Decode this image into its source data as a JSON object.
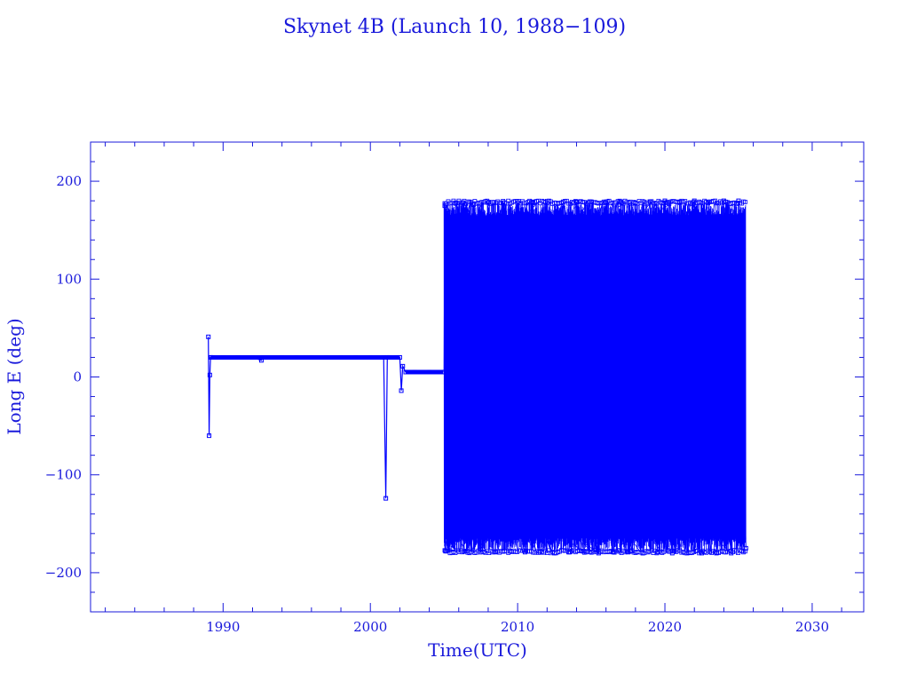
{
  "chart_data": {
    "type": "line",
    "title": "Skynet 4B (Launch 10, 1988−109)",
    "xlabel": "Time(UTC)",
    "ylabel": "Long E (deg)",
    "xlim": [
      1981,
      2033.5
    ],
    "ylim": [
      -240,
      240
    ],
    "x_ticks": [
      1990,
      2000,
      2010,
      2020,
      2030
    ],
    "x_tick_labels": [
      "1990",
      "2000",
      "2010",
      "2020",
      "2030"
    ],
    "y_ticks": [
      -200,
      -100,
      0,
      100,
      200
    ],
    "y_tick_labels": [
      "−200",
      "−100",
      "0",
      "100",
      "200"
    ],
    "grid": false,
    "color": "#0000ff",
    "series": [
      {
        "x": [
          1989.0,
          1989.05,
          1989.1,
          1989.15,
          1989.2,
          1989.3,
          1990.0,
          1991.0,
          1992.0,
          1992.6,
          1992.7,
          1993.0,
          1994.0,
          1995.0,
          1996.0,
          1997.0,
          1998.0,
          1999.0,
          2000.0,
          2000.9,
          2001.05,
          2001.15,
          2001.3,
          2001.8,
          2002.0,
          2002.1,
          2002.2,
          2002.4,
          2003.0,
          2004.0,
          2004.95
        ],
        "y": [
          41,
          -60,
          2,
          20,
          20,
          20,
          20,
          20,
          20,
          17,
          20,
          20,
          20,
          20,
          20,
          20,
          20,
          20,
          20,
          20,
          -124,
          20,
          20,
          20,
          20,
          -14,
          11,
          5,
          5,
          5,
          5
        ]
      },
      {
        "x": [
          2005.0,
          2005.05,
          2005.1,
          2005.2,
          2005.3,
          2005.4,
          2005.6,
          2005.8,
          2006.0,
          2006.3,
          2006.6,
          2007.0,
          2007.5,
          2008.0,
          2008.5,
          2009.0,
          2009.5,
          2010.0,
          2010.5,
          2011.0,
          2011.5,
          2012.0,
          2012.5,
          2013.0,
          2013.5,
          2014.0,
          2014.5,
          2015.0,
          2015.5,
          2016.0,
          2016.5,
          2017.0,
          2017.5,
          2018.0,
          2018.5,
          2019.0,
          2019.5,
          2020.0,
          2020.5,
          2021.0,
          2021.5,
          2022.0,
          2022.5,
          2023.0,
          2023.5,
          2024.0,
          2024.5,
          2025.0,
          2025.5
        ],
        "y": [
          5,
          175,
          -178,
          170,
          -170,
          150,
          -175,
          178,
          -160,
          178,
          -178,
          176,
          -176,
          178,
          -179,
          178,
          -178,
          178,
          -179,
          179,
          -178,
          178,
          -180,
          178,
          -179,
          179,
          -178,
          179,
          -180,
          178,
          -179,
          179,
          -179,
          178,
          -180,
          179,
          -179,
          180,
          -180,
          179,
          -180,
          180,
          -180,
          179,
          -180,
          180,
          -180,
          180,
          -175
        ]
      }
    ]
  }
}
